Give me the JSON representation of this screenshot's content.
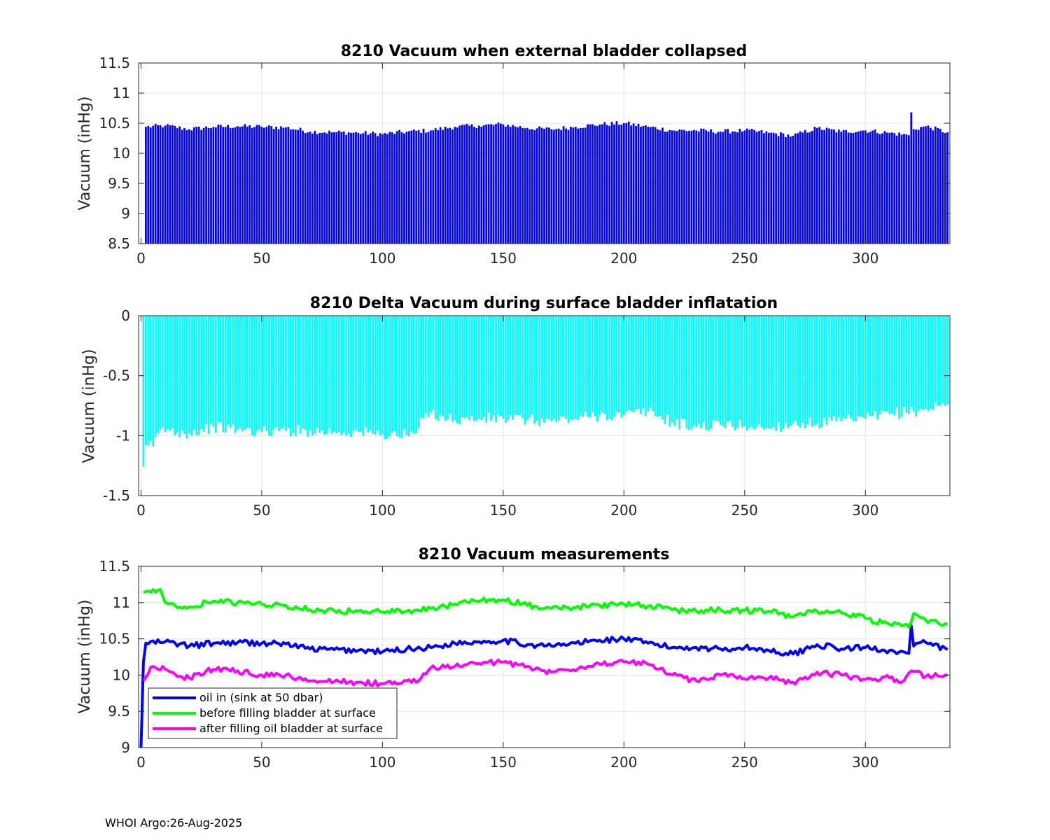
{
  "footer": "WHOI Argo:26-Aug-2025",
  "colors": {
    "blue": "#0000ff",
    "cyan": "#00ffff",
    "green": "#00ff00",
    "magenta": "#ff00ff",
    "grid": "#e3e3e3",
    "axis": "#262626"
  },
  "chart_data": [
    {
      "type": "bar",
      "title": "8210 Vacuum when external bladder collapsed",
      "xlabel": "",
      "ylabel": "Vacuum (inHg)",
      "xlim": [
        -1,
        335
      ],
      "ylim": [
        8.5,
        11.5
      ],
      "xticks": [
        0,
        50,
        100,
        150,
        200,
        250,
        300
      ],
      "yticks": [
        8.5,
        9,
        9.5,
        10,
        10.5,
        11,
        11.5
      ],
      "yticklabels": [
        "8.5",
        "9",
        "9.5",
        "10",
        "10.5",
        "11",
        "11.5"
      ],
      "grid": true,
      "color": "#0000ff",
      "baseline": "bottom",
      "x_start": 0,
      "x_step": 1,
      "values": "N=335; anchors (x:value) 0:9.0, 1:10.18, 2:10.44, 10:10.46, 20:10.40, 30:10.44, 40:10.45, 50:10.44, 60:10.43, 70:10.36, 80:10.35, 90:10.34, 100:10.32, 110:10.36, 120:10.38, 130:10.44, 140:10.46, 150:10.48, 160:10.42, 170:10.40, 180:10.44, 190:10.48, 200:10.50, 210:10.44, 220:10.38, 230:10.38, 240:10.36, 250:10.38, 260:10.34, 270:10.29, 280:10.42, 290:10.36, 300:10.38, 310:10.34, 318:10.30, 319:10.68, 320:10.40, 325:10.45, 334:10.35; jitter ±0.04",
      "spike_note": "tallest bar 10.68 at x=319"
    },
    {
      "type": "bar",
      "title": "8210 Delta Vacuum during surface bladder inflatation",
      "xlabel": "",
      "ylabel": "Vacuum (inHg)",
      "xlim": [
        -1,
        335
      ],
      "ylim": [
        -1.5,
        0
      ],
      "xticks": [
        0,
        50,
        100,
        150,
        200,
        250,
        300
      ],
      "yticks": [
        -1.5,
        -1,
        -0.5,
        0
      ],
      "yticklabels": [
        "-1.5",
        "-1",
        "-0.5",
        "0"
      ],
      "grid": true,
      "color": "#00ffff",
      "baseline": "zero",
      "x_start": 1,
      "x_step": 1,
      "values": "N=334 (x=1..334); anchors 1:-1.26, 2:-1.08, 5:-1.09, 8:-0.95, 20:-0.98, 30:-0.93, 40:-0.95, 50:-0.97, 60:-0.96, 70:-0.96, 80:-0.97, 90:-0.97, 100:-0.99, 110:-1.00, 114:-0.98, 117:-0.86, 120:-0.81, 130:-0.87, 140:-0.86, 150:-0.86, 160:-0.87, 170:-0.88, 180:-0.86, 190:-0.83, 200:-0.83, 210:-0.80, 220:-0.89, 230:-0.93, 240:-0.91, 250:-0.92, 260:-0.94, 270:-0.90, 280:-0.90, 290:-0.88, 300:-0.86, 310:-0.82, 320:-0.80, 334:-0.74; jitter ±0.05"
    },
    {
      "type": "line",
      "title": "8210 Vacuum measurements",
      "xlabel": "",
      "ylabel": "Vacuum (inHg)",
      "xlim": [
        -1,
        335
      ],
      "ylim": [
        9,
        11.5
      ],
      "xticks": [
        0,
        50,
        100,
        150,
        200,
        250,
        300
      ],
      "yticks": [
        9,
        9.5,
        10,
        10.5,
        11,
        11.5
      ],
      "yticklabels": [
        "9",
        "9.5",
        "10",
        "10.5",
        "11",
        "11.5"
      ],
      "grid": true,
      "legend_position": "bottom-left",
      "series": [
        {
          "name": "oil in (sink at 50 dbar)",
          "color": "#0000ff",
          "values": "x=0..334; anchors 0:9.0, 1:10.18, 2:10.44, 10:10.46, 20:10.40, 30:10.44, 40:10.45, 50:10.44, 60:10.43, 70:10.36, 80:10.35, 90:10.34, 100:10.32, 110:10.36, 120:10.38, 130:10.44, 140:10.46, 150:10.48, 160:10.42, 170:10.40, 180:10.44, 190:10.48, 200:10.50, 210:10.44, 220:10.38, 230:10.38, 240:10.36, 250:10.38, 260:10.34, 270:10.29, 280:10.42, 290:10.36, 300:10.38, 310:10.34, 318:10.30, 319:10.68, 320:10.40, 325:10.45, 334:10.35; jitter ±0.04"
        },
        {
          "name": "before filling bladder at surface",
          "color": "#00ff00",
          "values": "x=1..334; anchors 1:11.14, 5:11.18, 8:11.18, 10:11.00, 15:10.93, 20:10.94, 30:11.02, 40:11.00, 50:10.98, 60:10.96, 70:10.90, 80:10.89, 90:10.88, 100:10.87, 110:10.88, 120:10.92, 130:10.98, 140:11.02, 150:11.04, 160:10.96, 170:10.92, 180:10.93, 190:10.96, 200:10.98, 210:10.95, 220:10.90, 230:10.88, 240:10.90, 250:10.89, 260:10.88, 270:10.80, 280:10.88, 290:10.86, 300:10.78, 310:10.70, 318:10.66, 320:10.85, 325:10.76, 334:10.70; jitter ±0.04"
        },
        {
          "name": "after filling oil bladder at surface",
          "color": "#ff00ff",
          "values": "x=1..334; anchors 1:9.92, 5:10.12, 10:10.08, 15:9.98, 20:9.96, 30:10.08, 40:10.06, 50:10.00, 60:10.00, 70:9.92, 80:9.91, 90:9.90, 100:9.88, 110:9.92, 114:9.90, 117:10.02, 120:10.10, 130:10.12, 140:10.16, 150:10.18, 160:10.12, 170:10.04, 180:10.06, 190:10.15, 200:10.18, 210:10.15, 220:10.00, 230:9.92, 240:10.00, 250:9.95, 260:9.96, 270:9.90, 280:10.04, 290:10.00, 300:9.94, 310:9.96, 315:9.90, 320:10.05, 325:9.98, 334:10.00; jitter ±0.04"
        }
      ]
    }
  ]
}
